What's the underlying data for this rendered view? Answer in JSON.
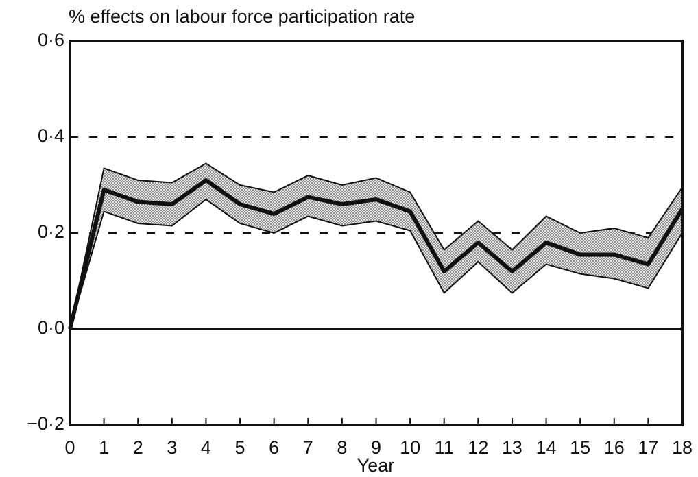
{
  "chart_data": {
    "type": "line",
    "title": "% effects on labour force participation rate",
    "x_label": "Year",
    "x": [
      0,
      1,
      2,
      3,
      4,
      5,
      6,
      7,
      8,
      9,
      10,
      11,
      12,
      13,
      14,
      15,
      16,
      17,
      18
    ],
    "series": [
      {
        "color": "#111111",
        "band_color": "#9a9a9a",
        "values": [
          0,
          0.29,
          0.265,
          0.26,
          0.31,
          0.26,
          0.24,
          0.275,
          0.26,
          0.27,
          0.245,
          0.12,
          0.18,
          0.12,
          0.18,
          0.155,
          0.155,
          0.135,
          0.25
        ],
        "upper": [
          0,
          0.335,
          0.31,
          0.305,
          0.345,
          0.3,
          0.285,
          0.32,
          0.3,
          0.315,
          0.285,
          0.165,
          0.225,
          0.165,
          0.235,
          0.2,
          0.21,
          0.19,
          0.295
        ],
        "lower": [
          0,
          0.245,
          0.22,
          0.215,
          0.27,
          0.22,
          0.2,
          0.235,
          0.215,
          0.225,
          0.205,
          0.075,
          0.14,
          0.075,
          0.135,
          0.115,
          0.105,
          0.085,
          0.2
        ]
      }
    ],
    "xlim": [
      0,
      18
    ],
    "xticks": [
      0,
      1,
      2,
      3,
      4,
      5,
      6,
      7,
      8,
      9,
      10,
      11,
      12,
      13,
      14,
      15,
      16,
      17,
      18
    ],
    "ylim": [
      -0.2,
      0.6
    ],
    "yticks": [
      {
        "value": -0.2,
        "label": "−0·2"
      },
      {
        "value": 0,
        "label": "0·0"
      },
      {
        "value": 0.2,
        "label": "0·2"
      },
      {
        "value": 0.4,
        "label": "0·4"
      },
      {
        "value": 0.6,
        "label": "0·6"
      }
    ],
    "grid": "dashed"
  }
}
